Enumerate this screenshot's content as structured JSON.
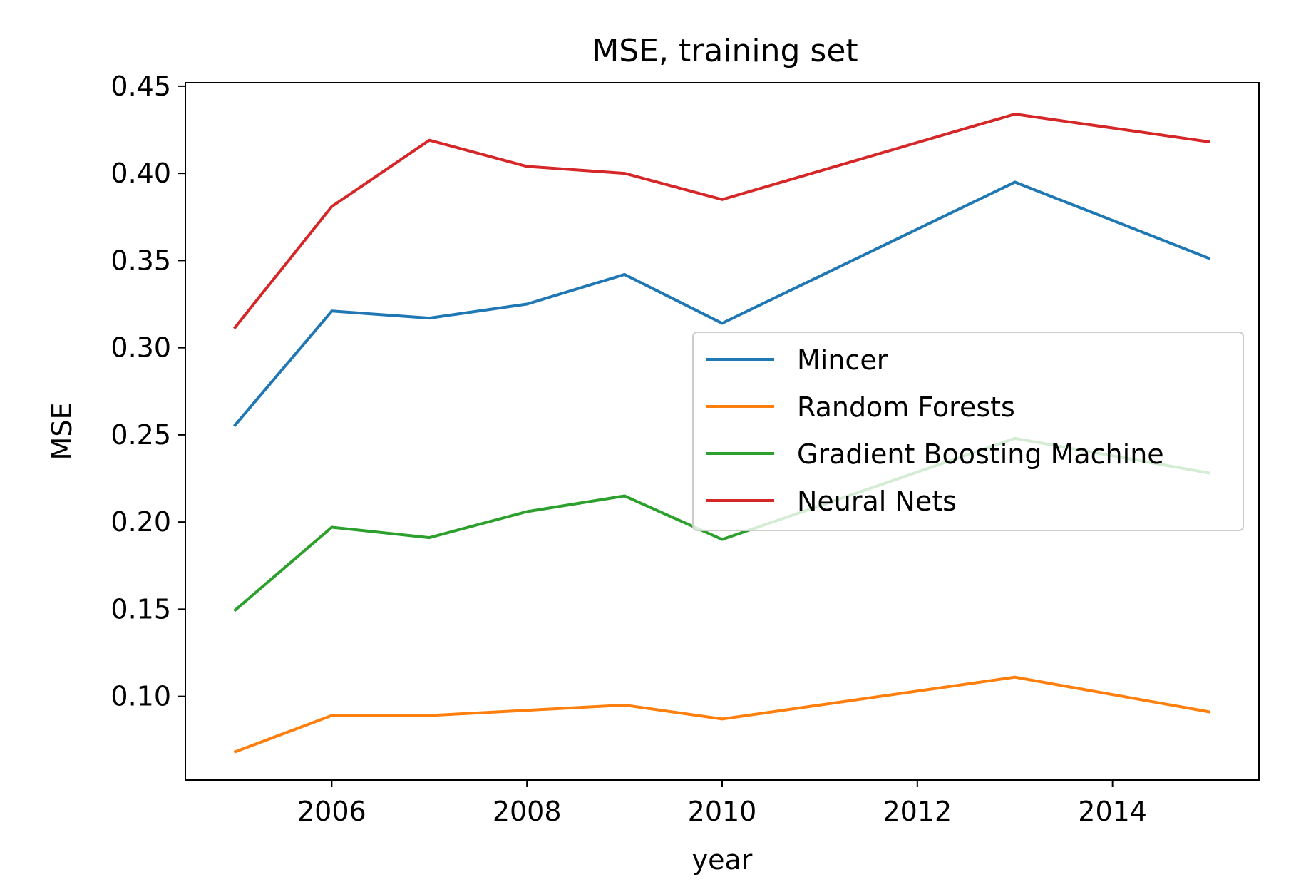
{
  "chart_data": {
    "type": "line",
    "title": "MSE, training set",
    "xlabel": "year",
    "ylabel": "MSE",
    "xlim": [
      2004.5,
      2015.5
    ],
    "ylim": [
      0.052,
      0.452
    ],
    "xticks": [
      2006,
      2008,
      2010,
      2012,
      2014
    ],
    "yticks": [
      0.1,
      0.15,
      0.2,
      0.25,
      0.3,
      0.35,
      0.4,
      0.45
    ],
    "grid": false,
    "legend_position": "center-right",
    "x": [
      2005,
      2006,
      2007,
      2008,
      2009,
      2010,
      2013,
      2015
    ],
    "series": [
      {
        "name": "Mincer",
        "color": "#1f77b4",
        "values": [
          0.255,
          0.321,
          0.317,
          0.325,
          0.342,
          0.314,
          0.395,
          0.351
        ]
      },
      {
        "name": "Random Forests",
        "color": "#ff7f0e",
        "values": [
          0.068,
          0.089,
          0.089,
          0.092,
          0.095,
          0.087,
          0.111,
          0.091
        ]
      },
      {
        "name": "Gradient Boosting Machine",
        "color": "#2ca02c",
        "values": [
          0.149,
          0.197,
          0.191,
          0.206,
          0.215,
          0.19,
          0.248,
          0.228
        ]
      },
      {
        "name": "Neural Nets",
        "color": "#d62728",
        "values": [
          0.311,
          0.381,
          0.419,
          0.404,
          0.4,
          0.385,
          0.434,
          0.418
        ]
      }
    ]
  }
}
